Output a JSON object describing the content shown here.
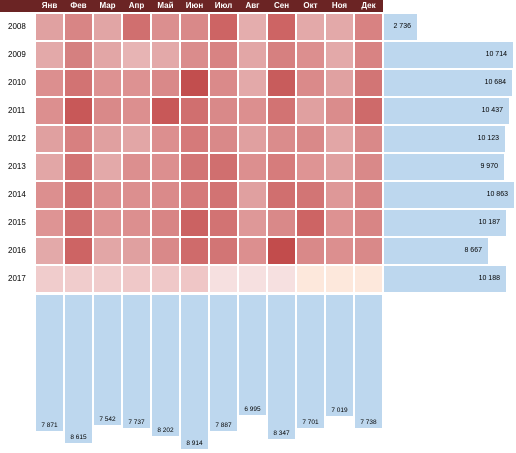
{
  "months": [
    "Янв",
    "Фев",
    "Мар",
    "Апр",
    "Май",
    "Июн",
    "Июл",
    "Авг",
    "Сен",
    "Окт",
    "Ноя",
    "Дек"
  ],
  "years": [
    "2008",
    "2009",
    "2010",
    "2011",
    "2012",
    "2013",
    "2014",
    "2015",
    "2016",
    "2017"
  ],
  "row_totals": [
    "2 736",
    "10 714",
    "10 684",
    "10 437",
    "10 123",
    "9 970",
    "10 863",
    "10 187",
    "8 667",
    "10 188"
  ],
  "row_total_values": [
    2736,
    10714,
    10684,
    10437,
    10123,
    9970,
    10863,
    10187,
    8667,
    10188
  ],
  "col_totals": [
    "7 871",
    "8 615",
    "7 542",
    "7 737",
    "8 202",
    "8 914",
    "7 887",
    "6 995",
    "8 347",
    "7 701",
    "7 019",
    "7 738"
  ],
  "col_total_values": [
    7871,
    8615,
    7542,
    7737,
    8202,
    8914,
    7887,
    6995,
    8347,
    7701,
    7019,
    7738
  ],
  "heat_colors": [
    [
      "#e0a1a1",
      "#d88585",
      "#e1a5a5",
      "#d06f6f",
      "#db8f8f",
      "#d98989",
      "#cd6464",
      "#e4adad",
      "#cd6464",
      "#e3a9a9",
      "#e3a9a9",
      "#d88282"
    ],
    [
      "#e3a9a9",
      "#d58080",
      "#e2a6a6",
      "#e7b4b4",
      "#e3a9a9",
      "#da8c8c",
      "#d88383",
      "#e2a6a6",
      "#d68080",
      "#dc8f8f",
      "#e3a9a9",
      "#d88383"
    ],
    [
      "#dc8f8f",
      "#d27373",
      "#dd9292",
      "#dd9292",
      "#d98989",
      "#c24e4e",
      "#da8a8a",
      "#e3a9a9",
      "#c85c5c",
      "#da8a8a",
      "#e0a1a1",
      "#d27575"
    ],
    [
      "#dc8f8f",
      "#c85858",
      "#d98989",
      "#dc8f8f",
      "#c85858",
      "#d06f6f",
      "#d98989",
      "#dc8f8f",
      "#d27373",
      "#e0a0a0",
      "#da8c8c",
      "#ce6a6a"
    ],
    [
      "#e0a0a0",
      "#d78080",
      "#e0a0a0",
      "#e2a6a6",
      "#dc8f8f",
      "#d57a7a",
      "#d98989",
      "#e0a0a0",
      "#da8c8c",
      "#d98989",
      "#e2a6a6",
      "#d98989"
    ],
    [
      "#e2a6a6",
      "#d27373",
      "#e3a9a9",
      "#dc8f8f",
      "#dc8f8f",
      "#d27575",
      "#d06f6f",
      "#dc8f8f",
      "#d67c7c",
      "#de9494",
      "#e0a0a0",
      "#d98989"
    ],
    [
      "#dc8f8f",
      "#d06f6f",
      "#dc8f8f",
      "#dc8f8f",
      "#da8a8a",
      "#d57a7a",
      "#d27373",
      "#e0a0a0",
      "#d06f6f",
      "#d27575",
      "#de9898",
      "#d88585"
    ],
    [
      "#de9494",
      "#d06f6f",
      "#dd9292",
      "#dc8f8f",
      "#d88585",
      "#cb6262",
      "#d27373",
      "#de9898",
      "#d98989",
      "#cd6464",
      "#dd9292",
      "#d88585"
    ],
    [
      "#e3a9a9",
      "#cd6464",
      "#e2a6a6",
      "#e0a0a0",
      "#d98989",
      "#cf6b6b",
      "#d27575",
      "#dc8f8f",
      "#c24c4c",
      "#d98989",
      "#dc8f8f",
      "#d98989"
    ],
    [
      "#f0cccc",
      "#f0cccc",
      "#f0cccc",
      "#efc8c8",
      "#efc8c8",
      "#efc6c6",
      "#f6e0e0",
      "#f6e0e0",
      "#f6e0e0",
      "#fde8dc",
      "#fde8dc",
      "#fde8dc"
    ]
  ]
}
